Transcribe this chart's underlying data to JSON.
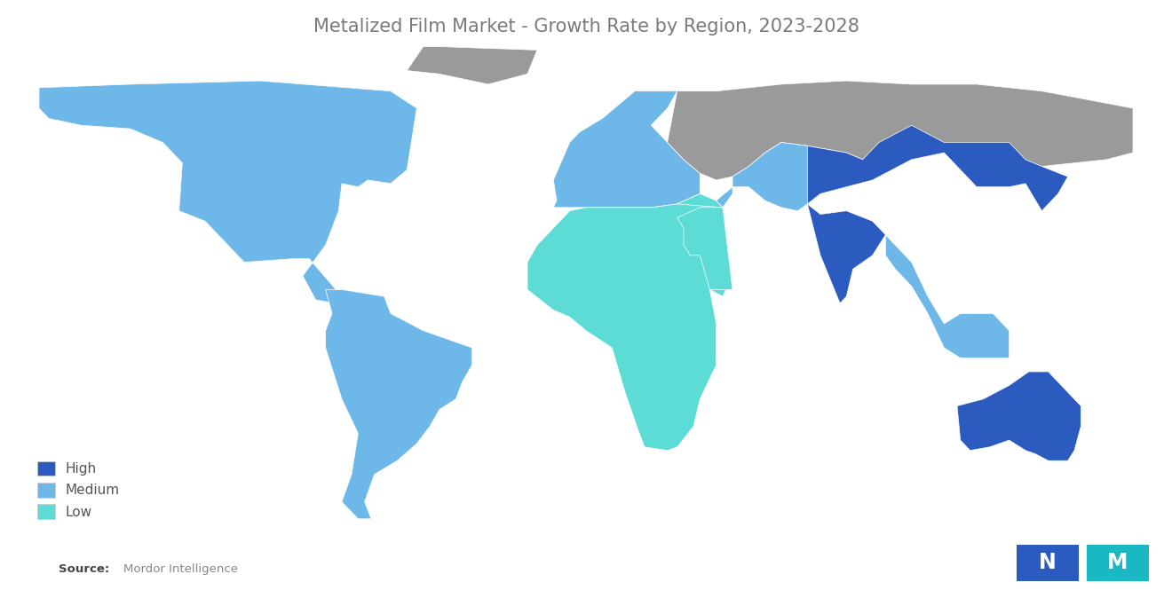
{
  "title": "Metalized Film Market - Growth Rate by Region, 2023-2028",
  "title_color": "#7a7a7a",
  "title_fontsize": 15,
  "background_color": "#ffffff",
  "legend_items": [
    {
      "label": "High",
      "color": "#2b5bbf"
    },
    {
      "label": "Medium",
      "color": "#6db8e8"
    },
    {
      "label": "Low",
      "color": "#5ddbd5"
    }
  ],
  "ocean_color": "#dff0f7",
  "border_color": "#ffffff",
  "gray_color": "#9a9a9a",
  "source_bold": "Source:",
  "source_normal": "  Mordor Intelligence",
  "logo_blue": "#2b5bbf",
  "logo_teal": "#1ab8c2"
}
